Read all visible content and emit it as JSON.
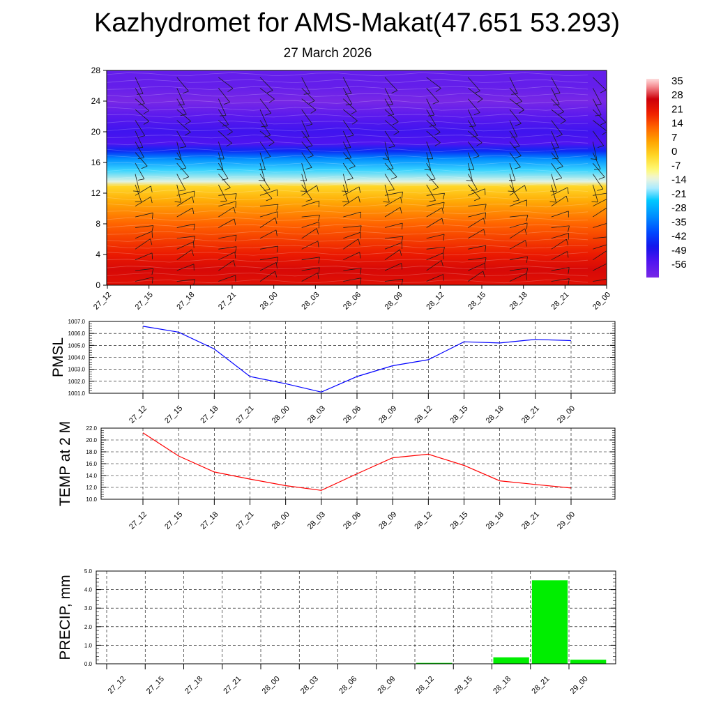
{
  "title": "Kazhydromet for AMS-Makat(47.651 53.293)",
  "subtitle": "27 March 2026",
  "colors": {
    "pmsl_line": "#0000ff",
    "temp_line": "#ff0000",
    "precip_bar": "#00ee00",
    "grid": "#000000"
  },
  "chart_data": [
    {
      "type": "heatmap",
      "name": "temperature cross-section",
      "x_categories": [
        "27_12",
        "27_15",
        "27_18",
        "27_21",
        "28_00",
        "28_03",
        "28_06",
        "28_09",
        "28_12",
        "28_15",
        "28_18",
        "28_21",
        "29_00"
      ],
      "y_ticks": [
        0,
        4,
        8,
        12,
        16,
        20,
        24,
        28
      ],
      "ylim": [
        0,
        28
      ],
      "colorbar_labels": [
        "35",
        "28",
        "21",
        "14",
        "7",
        "0",
        "-7",
        "-14",
        "-21",
        "-28",
        "-35",
        "-42",
        "-49",
        "-56"
      ],
      "colorbar_range": [
        -60,
        38
      ],
      "temperature_profile": [
        {
          "level": 0,
          "value": 24
        },
        {
          "level": 2,
          "value": 26
        },
        {
          "level": 4,
          "value": 22
        },
        {
          "level": 8,
          "value": 14
        },
        {
          "level": 11,
          "value": 6
        },
        {
          "level": 12.9,
          "value": 0
        },
        {
          "level": 13.5,
          "value": -12
        },
        {
          "level": 15,
          "value": -20
        },
        {
          "level": 16.5,
          "value": -30
        },
        {
          "level": 17.5,
          "value": -42
        },
        {
          "level": 18.5,
          "value": -52
        },
        {
          "level": 20,
          "value": -50
        },
        {
          "level": 22,
          "value": -54
        },
        {
          "level": 24,
          "value": -60
        },
        {
          "level": 26,
          "value": -56
        },
        {
          "level": 28,
          "value": -56
        }
      ],
      "wind_barbs": "shown"
    },
    {
      "type": "line",
      "ylabel": "PMSL",
      "categories": [
        "27_12",
        "27_15",
        "27_18",
        "27_21",
        "28_00",
        "28_03",
        "28_06",
        "28_09",
        "28_12",
        "28_15",
        "28_18",
        "28_21",
        "29_00"
      ],
      "values": [
        1006.6,
        1006.1,
        1004.7,
        1002.4,
        1001.8,
        1001.1,
        1002.4,
        1003.3,
        1003.8,
        1005.3,
        1005.2,
        1005.5,
        1005.4
      ],
      "ylim": [
        1001.0,
        1007.0
      ],
      "y_tick_labels": [
        "1001.0",
        "1002.0",
        "1003.0",
        "1004.0",
        "1005.0",
        "1006.0",
        "1007.0"
      ],
      "grid": true
    },
    {
      "type": "line",
      "ylabel": "TEMP at 2 M",
      "categories": [
        "27_12",
        "27_15",
        "27_18",
        "27_21",
        "28_00",
        "28_03",
        "28_06",
        "28_09",
        "28_12",
        "28_15",
        "28_18",
        "28_21",
        "29_00"
      ],
      "values": [
        21.2,
        17.3,
        14.6,
        13.4,
        12.3,
        11.5,
        14.3,
        17.0,
        17.6,
        15.7,
        13.1,
        12.5,
        11.9
      ],
      "ylim": [
        10.0,
        22.0
      ],
      "y_tick_labels": [
        "10.0",
        "12.0",
        "14.0",
        "16.0",
        "18.0",
        "20.0",
        "22.0"
      ],
      "grid": true
    },
    {
      "type": "bar",
      "ylabel": "PRECIP, mm",
      "categories": [
        "27_12",
        "27_15",
        "27_18",
        "27_21",
        "28_00",
        "28_03",
        "28_06",
        "28_09",
        "28_12",
        "28_15",
        "28_18",
        "28_21",
        "29_00"
      ],
      "values": [
        0,
        0,
        0,
        0,
        0,
        0,
        0,
        0,
        0.05,
        0,
        0.35,
        4.5,
        0.22
      ],
      "ylim": [
        0,
        5.0
      ],
      "y_tick_labels": [
        "0.0",
        "1.0",
        "2.0",
        "3.0",
        "4.0",
        "5.0"
      ],
      "grid": true
    }
  ]
}
